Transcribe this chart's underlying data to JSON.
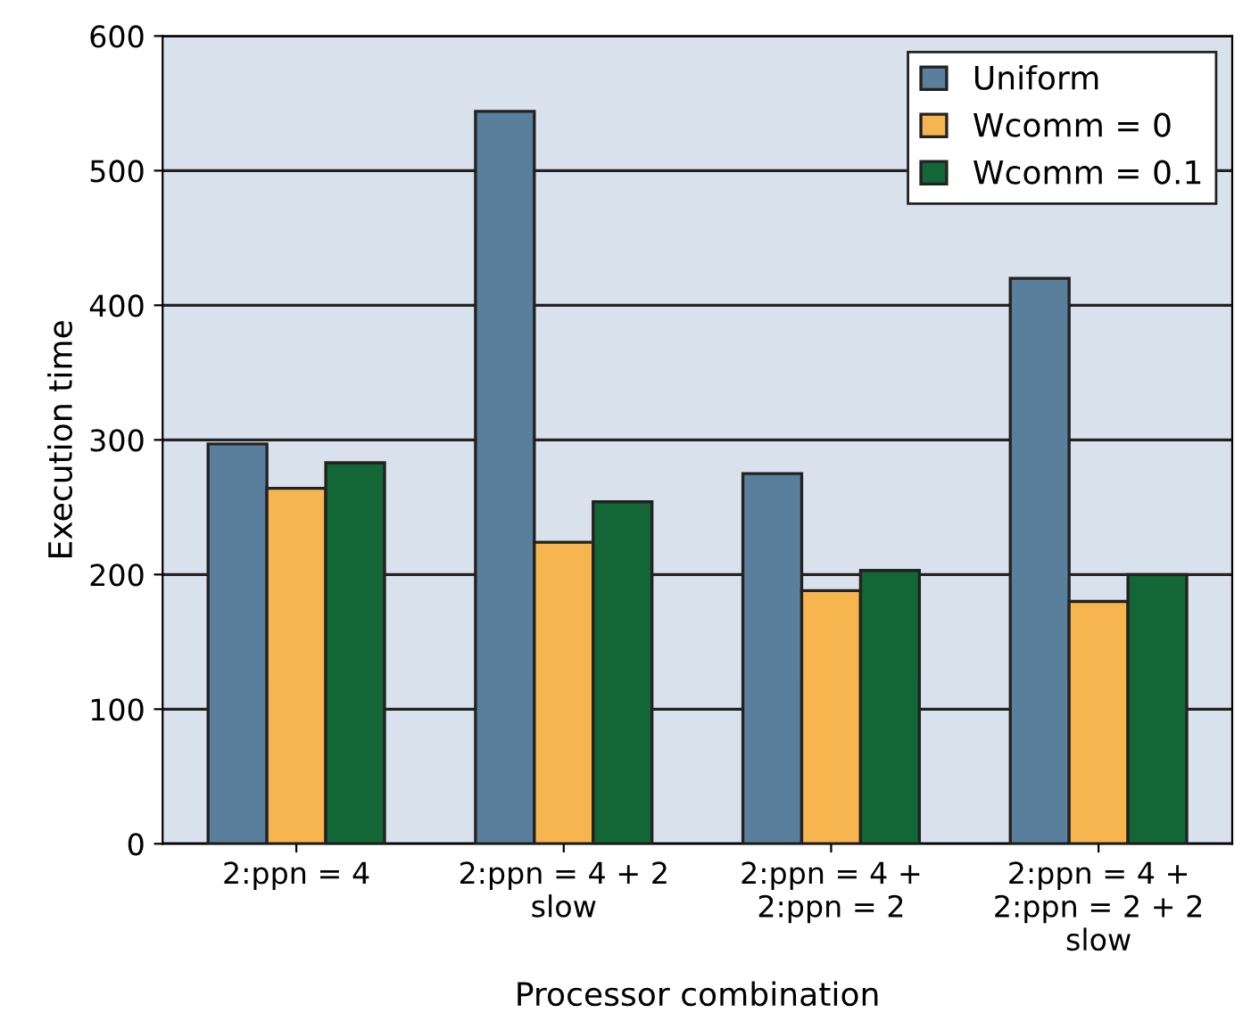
{
  "chart_data": {
    "type": "bar",
    "xlabel": "Processor combination",
    "ylabel": "Execution time",
    "categories": [
      "2:ppn = 4",
      "2:ppn = 4 + 2\nslow",
      "2:ppn = 4 +\n2:ppn = 2",
      "2:ppn = 4 +\n2:ppn = 2 + 2\nslow"
    ],
    "series": [
      {
        "name": "Uniform",
        "color": "#5a7f9c",
        "values": [
          297,
          544,
          275,
          420
        ]
      },
      {
        "name": "Wcomm = 0",
        "color": "#f6b54e",
        "values": [
          264,
          224,
          188,
          180
        ]
      },
      {
        "name": "Wcomm = 0.1",
        "color": "#136636",
        "values": [
          283,
          254,
          203,
          200
        ]
      }
    ],
    "ylim": [
      0,
      600
    ],
    "yticks": [
      0,
      100,
      200,
      300,
      400,
      500,
      600
    ],
    "grid": "y",
    "legend": "top right"
  }
}
